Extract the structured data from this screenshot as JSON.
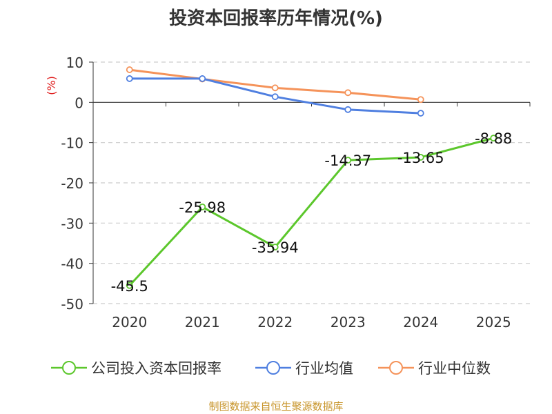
{
  "title": "投资本回报率历年情况(%)",
  "source": "制图数据来自恒生聚源数据库",
  "colors": {
    "company": "#5cc72c",
    "industry_avg": "#4f7fe0",
    "industry_median": "#f5935a",
    "unit_label": "#e02020",
    "source_text": "#c8952b",
    "grid": "#cccccc",
    "axis": "#333333"
  },
  "chart_data": {
    "type": "line",
    "title": "投资本回报率历年情况(%)",
    "unit_label": "(%)",
    "categories": [
      "2020",
      "2021",
      "2022",
      "2023",
      "2024",
      "2025"
    ],
    "ylim": [
      -50,
      10
    ],
    "yticks": [
      10,
      0,
      -10,
      -20,
      -30,
      -40,
      -50
    ],
    "grid": true,
    "legend_position": "bottom",
    "series": [
      {
        "name": "公司投入资本回报率",
        "color": "#5cc72c",
        "values": [
          -45.5,
          -25.98,
          -35.94,
          -14.37,
          -13.65,
          -8.88
        ],
        "labels": [
          "-45.5",
          "-25.98",
          "-35.94",
          "-14.37",
          "-13.65",
          "-8.88"
        ]
      },
      {
        "name": "行业均值",
        "color": "#4f7fe0",
        "values": [
          5.9,
          5.9,
          1.4,
          -1.8,
          -2.7,
          null
        ]
      },
      {
        "name": "行业中位数",
        "color": "#f5935a",
        "values": [
          8.1,
          5.8,
          3.6,
          2.4,
          0.7,
          null
        ]
      }
    ]
  }
}
